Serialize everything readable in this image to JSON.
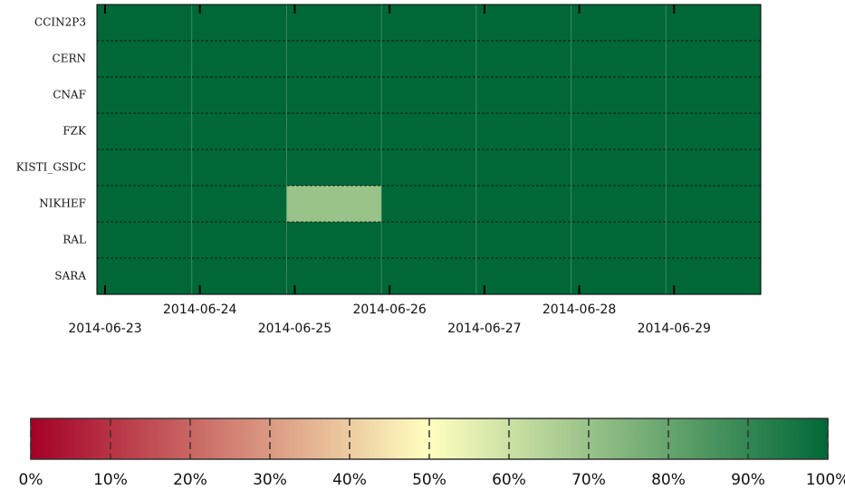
{
  "chart_data": {
    "type": "heatmap",
    "x": [
      "2014-06-23",
      "2014-06-24",
      "2014-06-25",
      "2014-06-26",
      "2014-06-27",
      "2014-06-28",
      "2014-06-29"
    ],
    "y": [
      "CCIN2P3",
      "CERN",
      "CNAF",
      "FZK",
      "KISTI_GSDC",
      "NIKHEF",
      "RAL",
      "SARA"
    ],
    "values": [
      [
        100,
        100,
        100,
        100,
        100,
        100,
        100
      ],
      [
        100,
        100,
        100,
        100,
        100,
        100,
        100
      ],
      [
        100,
        100,
        100,
        100,
        100,
        100,
        100
      ],
      [
        100,
        100,
        100,
        100,
        100,
        100,
        100
      ],
      [
        100,
        100,
        100,
        100,
        100,
        100,
        100
      ],
      [
        100,
        100,
        70,
        100,
        100,
        100,
        100
      ],
      [
        100,
        100,
        100,
        100,
        100,
        100,
        100
      ],
      [
        100,
        100,
        100,
        100,
        100,
        100,
        100
      ]
    ],
    "colorscale": [
      "#a50026",
      "#ffffbf",
      "#006837"
    ],
    "zlim": [
      0,
      100
    ],
    "zticks": [
      {
        "value": 0,
        "label": "0%"
      },
      {
        "value": 10,
        "label": "10%"
      },
      {
        "value": 20,
        "label": "20%"
      },
      {
        "value": 30,
        "label": "30%"
      },
      {
        "value": 40,
        "label": "40%"
      },
      {
        "value": 50,
        "label": "50%"
      },
      {
        "value": 60,
        "label": "60%"
      },
      {
        "value": 70,
        "label": "70%"
      },
      {
        "value": 80,
        "label": "80%"
      },
      {
        "value": 90,
        "label": "90%"
      },
      {
        "value": 100,
        "label": "100%"
      }
    ]
  }
}
